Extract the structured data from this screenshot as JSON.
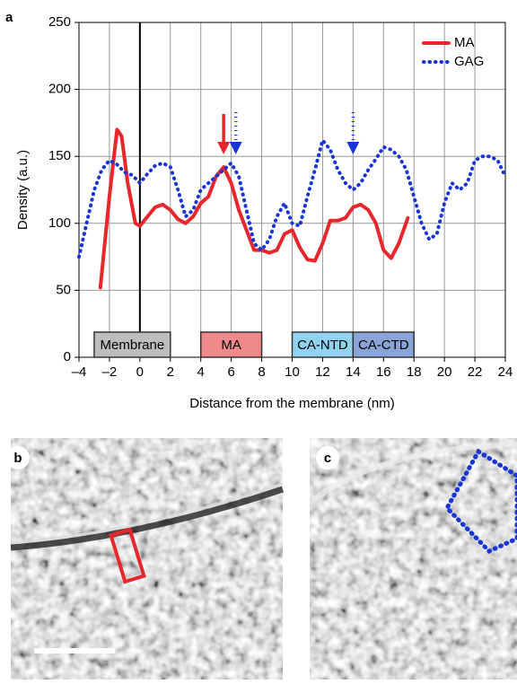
{
  "panel_labels": [
    "a",
    "b",
    "c"
  ],
  "chart_data": {
    "type": "line",
    "x_label": "Distance from the membrane (nm)",
    "y_label": "Density (a.u.)",
    "xlim": [
      -4,
      24
    ],
    "ylim": [
      0,
      250
    ],
    "xticks": [
      {
        "value": -4,
        "label": "–4"
      },
      {
        "value": -2,
        "label": "–2"
      },
      0,
      2,
      4,
      6,
      8,
      10,
      12,
      14,
      16,
      18,
      20,
      22,
      24
    ],
    "yticks": [
      0,
      50,
      100,
      150,
      200,
      250
    ],
    "grid": true,
    "legend": "upper right",
    "series": [
      {
        "name": "MA",
        "color": "#e8262b",
        "style": "solid",
        "x": [
          -2.6,
          -2,
          -1.5,
          -1.2,
          -0.8,
          -0.3,
          0,
          0.5,
          1,
          1.5,
          2,
          2.5,
          3,
          3.5,
          4,
          4.5,
          5,
          5.5,
          6,
          6.5,
          7,
          7.5,
          8,
          8.5,
          9,
          9.5,
          10,
          10.5,
          11,
          11.5,
          12,
          12.5,
          13,
          13.5,
          14,
          14.5,
          15,
          15.5,
          16,
          16.5,
          17,
          17.6
        ],
        "values": [
          52,
          120,
          170,
          165,
          130,
          100,
          98,
          105,
          112,
          114,
          110,
          103,
          100,
          105,
          115,
          120,
          135,
          142,
          130,
          110,
          95,
          80,
          80,
          78,
          80,
          92,
          95,
          82,
          73,
          72,
          85,
          102,
          102,
          104,
          112,
          114,
          110,
          100,
          80,
          74,
          85,
          104
        ]
      },
      {
        "name": "GAG",
        "color": "#1a35d6",
        "style": "dotted",
        "x": [
          -4,
          -3.5,
          -3,
          -2.5,
          -2,
          -1.5,
          -1,
          -0.5,
          0,
          0.5,
          1,
          1.5,
          2,
          2.5,
          3,
          3.5,
          4,
          4.5,
          5,
          5.5,
          6,
          6.5,
          7,
          7.5,
          8,
          8.5,
          9,
          9.5,
          10,
          10.5,
          11,
          11.5,
          12,
          12.5,
          13,
          13.5,
          14,
          14.5,
          15,
          15.5,
          16,
          16.5,
          17,
          17.5,
          18,
          18.5,
          19,
          19.5,
          20,
          20.5,
          21,
          21.5,
          22,
          22.5,
          23,
          23.5,
          24
        ],
        "values": [
          75,
          100,
          125,
          140,
          147,
          144,
          138,
          136,
          130,
          137,
          143,
          145,
          142,
          125,
          105,
          110,
          125,
          130,
          135,
          140,
          145,
          135,
          110,
          85,
          80,
          88,
          105,
          115,
          100,
          98,
          120,
          140,
          162,
          155,
          140,
          130,
          125,
          130,
          140,
          148,
          157,
          155,
          150,
          140,
          120,
          100,
          88,
          92,
          115,
          130,
          125,
          130,
          147,
          150,
          150,
          147,
          135
        ]
      }
    ],
    "arrows": [
      {
        "x": 5.5,
        "color": "#e8262b"
      },
      {
        "x": 6.3,
        "color": "#1a35d6"
      },
      {
        "x": 14,
        "color": "#1a35d6"
      }
    ],
    "regions": [
      {
        "label": "Membrane",
        "start": -3,
        "end": 2,
        "color": "#bdbdbd"
      },
      {
        "label": "MA",
        "start": 4,
        "end": 8,
        "color": "#f08a8a"
      },
      {
        "label": "CA-NTD",
        "start": 10,
        "end": 14,
        "color": "#8fd3f0"
      },
      {
        "label": "CA-CTD",
        "start": 14,
        "end": 18,
        "color": "#8aa3d8"
      }
    ]
  }
}
